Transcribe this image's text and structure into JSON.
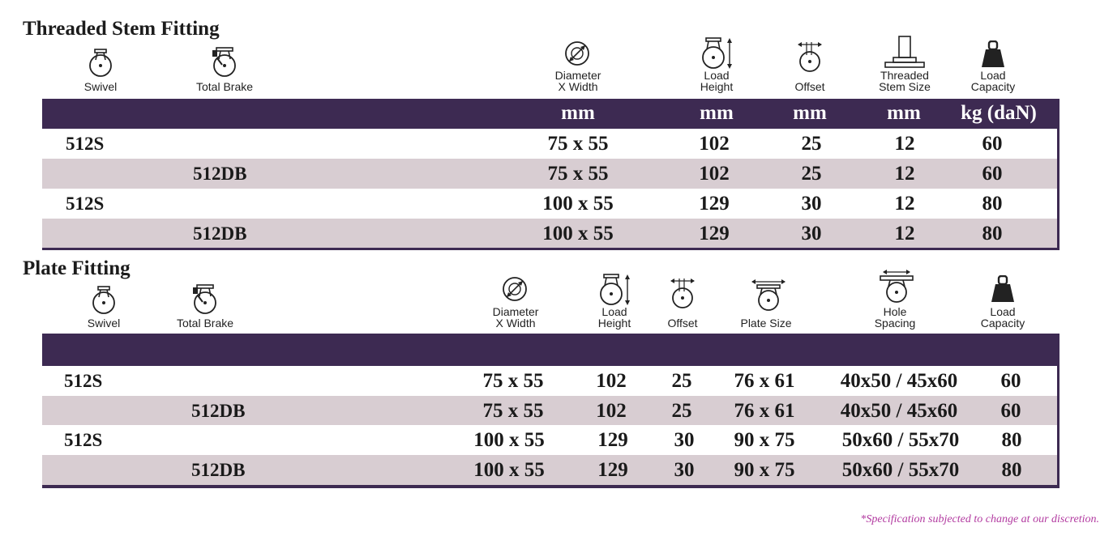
{
  "sections": [
    {
      "title": "Threaded Stem Fitting",
      "headers": {
        "swivel": "Swivel",
        "total_brake": "Total Brake",
        "diameter": [
          "Diameter",
          "X Width"
        ],
        "load_height": [
          "Load",
          "Height"
        ],
        "offset": "Offset",
        "stem_size": [
          "Threaded",
          "Stem Size"
        ],
        "load_capacity": [
          "Load",
          "Capacity"
        ]
      },
      "units": [
        "mm",
        "mm",
        "mm",
        "mm",
        "kg (daN)"
      ],
      "rows": [
        {
          "model": "512S",
          "type": "swivel",
          "diameter": "75 x 55",
          "load_height": "102",
          "offset": "25",
          "stem_size": "12",
          "load_capacity": "60"
        },
        {
          "model": "512DB",
          "type": "brake",
          "diameter": "75 x 55",
          "load_height": "102",
          "offset": "25",
          "stem_size": "12",
          "load_capacity": "60"
        },
        {
          "model": "512S",
          "type": "swivel",
          "diameter": "100 x 55",
          "load_height": "129",
          "offset": "30",
          "stem_size": "12",
          "load_capacity": "80"
        },
        {
          "model": "512DB",
          "type": "brake",
          "diameter": "100 x 55",
          "load_height": "129",
          "offset": "30",
          "stem_size": "12",
          "load_capacity": "80"
        }
      ]
    },
    {
      "title": "Plate Fitting",
      "headers": {
        "swivel": "Swivel",
        "total_brake": "Total Brake",
        "diameter": [
          "Diameter",
          "X Width"
        ],
        "load_height": [
          "Load",
          "Height"
        ],
        "offset": "Offset",
        "plate_size": "Plate Size",
        "hole_spacing": [
          "Hole",
          "Spacing"
        ],
        "load_capacity": [
          "Load",
          "Capacity"
        ]
      },
      "rows": [
        {
          "model": "512S",
          "type": "swivel",
          "diameter": "75 x 55",
          "load_height": "102",
          "offset": "25",
          "plate_size": "76 x 61",
          "hole_spacing": "40x50 / 45x60",
          "load_capacity": "60"
        },
        {
          "model": "512DB",
          "type": "brake",
          "diameter": "75 x 55",
          "load_height": "102",
          "offset": "25",
          "plate_size": "76 x 61",
          "hole_spacing": "40x50 / 45x60",
          "load_capacity": "60"
        },
        {
          "model": "512S",
          "type": "swivel",
          "diameter": "100 x 55",
          "load_height": "129",
          "offset": "30",
          "plate_size": "90 x 75",
          "hole_spacing": "50x60 / 55x70",
          "load_capacity": "80"
        },
        {
          "model": "512DB",
          "type": "brake",
          "diameter": "100 x 55",
          "load_height": "129",
          "offset": "30",
          "plate_size": "90 x 75",
          "hole_spacing": "50x60 / 55x70",
          "load_capacity": "80"
        }
      ]
    }
  ],
  "footnote": "*Specification subjected to change at our discretion.",
  "colors": {
    "header_band": "#3d2a52",
    "alt_row": "#d8cdd2",
    "footnote": "#b23aa0"
  },
  "icons": [
    "swivel-caster-icon",
    "total-brake-caster-icon",
    "wheel-diameter-icon",
    "load-height-icon",
    "offset-icon",
    "threaded-stem-icon",
    "load-weight-icon",
    "plate-size-icon",
    "hole-spacing-icon"
  ]
}
